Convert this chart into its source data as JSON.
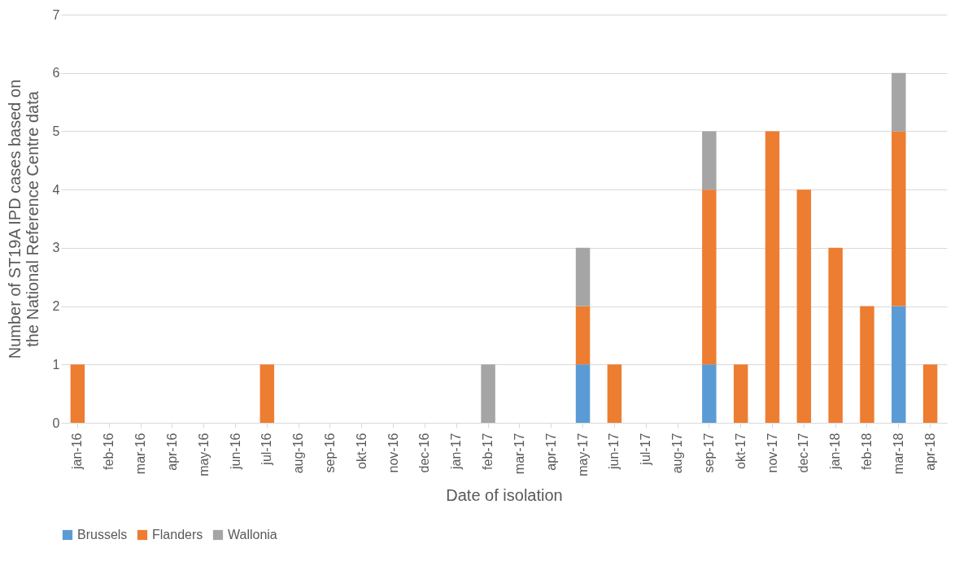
{
  "chart_data": {
    "type": "bar",
    "stacked": true,
    "xlabel": "Date of isolation",
    "ylabel": "Number of ST19A IPD cases based on the National Reference Centre data",
    "categories": [
      "jan-16",
      "feb-16",
      "mar-16",
      "apr-16",
      "may-16",
      "jun-16",
      "jul-16",
      "aug-16",
      "sep-16",
      "okt-16",
      "nov-16",
      "dec-16",
      "jan-17",
      "feb-17",
      "mar-17",
      "apr-17",
      "may-17",
      "jun-17",
      "jul-17",
      "aug-17",
      "sep-17",
      "okt-17",
      "nov-17",
      "dec-17",
      "jan-18",
      "feb-18",
      "mar-18",
      "apr-18"
    ],
    "series": [
      {
        "name": "Brussels",
        "color": "#5b9bd5",
        "values": [
          0,
          0,
          0,
          0,
          0,
          0,
          0,
          0,
          0,
          0,
          0,
          0,
          0,
          0,
          0,
          0,
          1,
          0,
          0,
          0,
          1,
          0,
          0,
          0,
          0,
          0,
          2,
          0
        ]
      },
      {
        "name": "Flanders",
        "color": "#ed7d31",
        "values": [
          1,
          0,
          0,
          0,
          0,
          0,
          1,
          0,
          0,
          0,
          0,
          0,
          0,
          0,
          0,
          0,
          1,
          1,
          0,
          0,
          3,
          1,
          5,
          4,
          3,
          2,
          3,
          1
        ]
      },
      {
        "name": "Wallonia",
        "color": "#a5a5a5",
        "values": [
          0,
          0,
          0,
          0,
          0,
          0,
          0,
          0,
          0,
          0,
          0,
          0,
          0,
          1,
          0,
          0,
          1,
          0,
          0,
          0,
          1,
          0,
          0,
          0,
          0,
          0,
          1,
          0
        ]
      }
    ],
    "ylim": [
      0,
      7
    ],
    "yticks": [
      0,
      1,
      2,
      3,
      4,
      5,
      6,
      7
    ],
    "grid": "y",
    "legend": "bottom"
  }
}
